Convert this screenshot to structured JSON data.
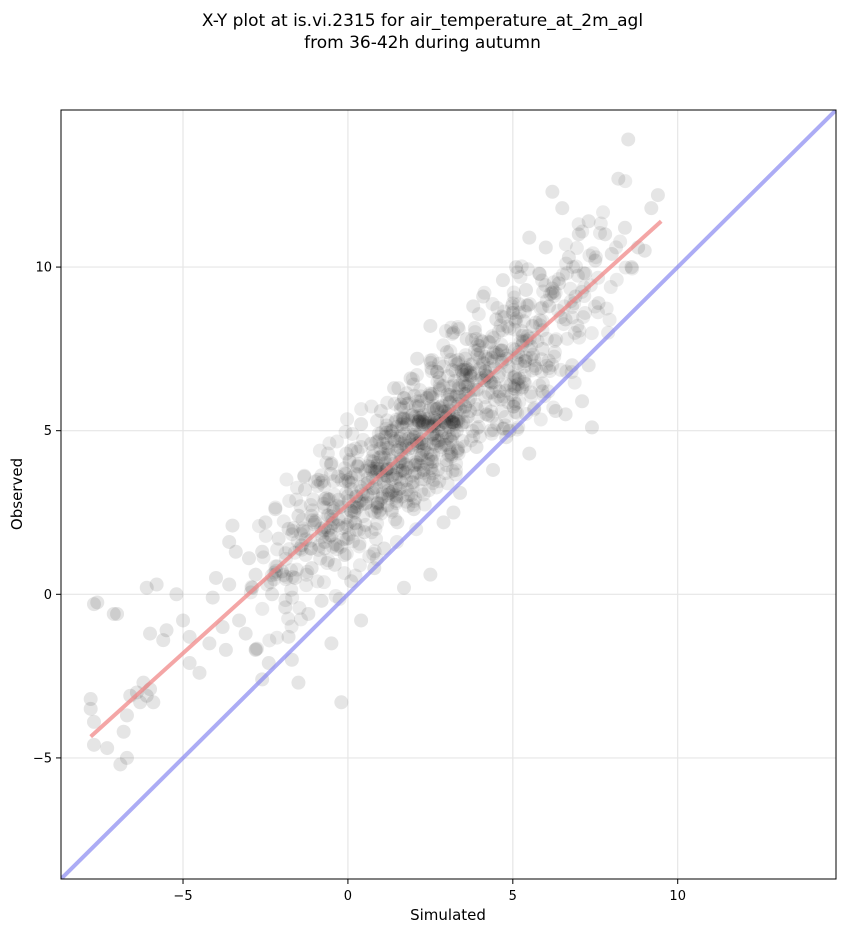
{
  "chart_data": {
    "type": "scatter",
    "title": "X-Y plot at is.vi.2315 for air_temperature_at_2m_agl",
    "subtitle": "from 36-42h during autumn",
    "xlabel": "Simulated",
    "ylabel": "Observed",
    "xlim": [
      -8.7,
      14.8
    ],
    "ylim": [
      -8.7,
      14.8
    ],
    "x_ticks": [
      -5,
      0,
      5,
      10
    ],
    "x_tick_labels": [
      "−5",
      "0",
      "5",
      "10"
    ],
    "y_ticks": [
      -5,
      0,
      5,
      10
    ],
    "y_tick_labels": [
      "−5",
      "0",
      "5",
      "10"
    ],
    "grid": true,
    "colors": {
      "points": "#000000",
      "regression": "#f08080",
      "identity": "#8080f0"
    },
    "regression_line": {
      "x": [
        -7.8,
        9.5
      ],
      "y": [
        -4.35,
        11.4
      ]
    },
    "identity_line": {
      "x": [
        -8.7,
        14.8
      ],
      "y": [
        -8.7,
        14.8
      ]
    },
    "points_sampled": [
      [
        -7.7,
        -0.3
      ],
      [
        -7.6,
        -0.25
      ],
      [
        -7.1,
        -0.6
      ],
      [
        -7.0,
        -0.6
      ],
      [
        -7.8,
        -3.2
      ],
      [
        -7.8,
        -3.5
      ],
      [
        -7.7,
        -3.9
      ],
      [
        -7.7,
        -4.6
      ],
      [
        -7.3,
        -4.7
      ],
      [
        -6.9,
        -5.2
      ],
      [
        -6.7,
        -5.0
      ],
      [
        -6.8,
        -4.2
      ],
      [
        -6.7,
        -3.7
      ],
      [
        -6.6,
        -3.1
      ],
      [
        -6.4,
        -3.0
      ],
      [
        -6.2,
        -2.7
      ],
      [
        -6.1,
        -3.1
      ],
      [
        -6.3,
        -3.3
      ],
      [
        -5.9,
        -3.3
      ],
      [
        -6.0,
        -2.9
      ],
      [
        -6.1,
        0.2
      ],
      [
        -5.8,
        0.3
      ],
      [
        -6.0,
        -1.2
      ],
      [
        -5.6,
        -1.4
      ],
      [
        -5.5,
        -1.1
      ],
      [
        -5.2,
        0.0
      ],
      [
        -5.0,
        -0.8
      ],
      [
        -4.8,
        -1.3
      ],
      [
        -4.8,
        -2.1
      ],
      [
        -4.5,
        -2.4
      ],
      [
        -4.2,
        -1.5
      ],
      [
        -4.1,
        -0.1
      ],
      [
        -4.0,
        0.5
      ],
      [
        -3.8,
        -1.0
      ],
      [
        -3.7,
        -1.7
      ],
      [
        -3.6,
        0.3
      ],
      [
        -3.6,
        1.6
      ],
      [
        -3.5,
        2.1
      ],
      [
        -3.4,
        1.3
      ],
      [
        -3.3,
        -0.8
      ],
      [
        -3.1,
        -1.2
      ],
      [
        -3.0,
        1.1
      ],
      [
        -2.9,
        0.2
      ],
      [
        -2.8,
        0.6
      ],
      [
        -2.8,
        -1.7
      ],
      [
        -2.6,
        -2.6
      ],
      [
        -2.6,
        1.3
      ],
      [
        -2.5,
        2.2
      ],
      [
        -2.4,
        -2.1
      ],
      [
        -2.3,
        0.0
      ],
      [
        -2.2,
        2.6
      ],
      [
        -2.1,
        1.7
      ],
      [
        -2.0,
        0.7
      ],
      [
        -1.9,
        -0.4
      ],
      [
        -1.8,
        -1.3
      ],
      [
        -1.8,
        2.0
      ],
      [
        -1.7,
        -2.0
      ],
      [
        -1.6,
        0.5
      ],
      [
        -1.5,
        2.4
      ],
      [
        -1.5,
        -2.7
      ],
      [
        -1.4,
        1.5
      ],
      [
        -1.3,
        3.2
      ],
      [
        -1.2,
        -0.6
      ],
      [
        -1.1,
        0.8
      ],
      [
        -1.0,
        2.2
      ],
      [
        -0.9,
        3.5
      ],
      [
        -0.8,
        -0.2
      ],
      [
        -0.7,
        1.6
      ],
      [
        -0.6,
        2.9
      ],
      [
        -0.5,
        4.0
      ],
      [
        -0.5,
        -1.5
      ],
      [
        -0.4,
        0.9
      ],
      [
        -0.3,
        2.1
      ],
      [
        -0.3,
        3.6
      ],
      [
        -0.2,
        -3.3
      ],
      [
        -0.1,
        1.2
      ],
      [
        0.0,
        3.0
      ],
      [
        0.1,
        4.4
      ],
      [
        0.1,
        0.4
      ],
      [
        0.2,
        2.5
      ],
      [
        0.3,
        3.9
      ],
      [
        0.4,
        5.2
      ],
      [
        0.4,
        -0.8
      ],
      [
        0.5,
        1.9
      ],
      [
        0.6,
        3.4
      ],
      [
        0.7,
        4.6
      ],
      [
        0.8,
        0.8
      ],
      [
        0.9,
        2.8
      ],
      [
        1.0,
        4.2
      ],
      [
        1.0,
        5.6
      ],
      [
        1.1,
        1.4
      ],
      [
        1.2,
        3.6
      ],
      [
        1.3,
        5.0
      ],
      [
        1.4,
        6.3
      ],
      [
        1.5,
        2.2
      ],
      [
        1.5,
        4.4
      ],
      [
        1.6,
        5.8
      ],
      [
        1.7,
        0.2
      ],
      [
        1.8,
        3.2
      ],
      [
        1.9,
        6.6
      ],
      [
        2.0,
        4.8
      ],
      [
        2.0,
        2.6
      ],
      [
        2.1,
        7.2
      ],
      [
        2.2,
        5.4
      ],
      [
        2.3,
        3.8
      ],
      [
        2.4,
        6.0
      ],
      [
        2.5,
        8.2
      ],
      [
        2.5,
        0.6
      ],
      [
        2.6,
        4.6
      ],
      [
        2.7,
        6.8
      ],
      [
        2.8,
        5.2
      ],
      [
        2.9,
        2.2
      ],
      [
        3.0,
        7.4
      ],
      [
        3.0,
        4.1
      ],
      [
        3.1,
        6.1
      ],
      [
        3.2,
        8.0
      ],
      [
        3.3,
        5.0
      ],
      [
        3.4,
        3.1
      ],
      [
        3.5,
        6.7
      ],
      [
        3.6,
        7.8
      ],
      [
        3.7,
        5.6
      ],
      [
        3.8,
        8.8
      ],
      [
        3.9,
        4.5
      ],
      [
        4.0,
        6.9
      ],
      [
        4.1,
        9.1
      ],
      [
        4.2,
        5.5
      ],
      [
        4.3,
        7.7
      ],
      [
        4.4,
        3.8
      ],
      [
        4.5,
        8.4
      ],
      [
        4.6,
        6.2
      ],
      [
        4.7,
        9.6
      ],
      [
        4.8,
        7.2
      ],
      [
        4.9,
        5.0
      ],
      [
        5.0,
        8.6
      ],
      [
        5.1,
        10.0
      ],
      [
        5.2,
        6.6
      ],
      [
        5.3,
        7.9
      ],
      [
        5.4,
        9.3
      ],
      [
        5.5,
        4.3
      ],
      [
        5.5,
        10.9
      ],
      [
        5.6,
        8.2
      ],
      [
        5.7,
        6.9
      ],
      [
        5.8,
        9.8
      ],
      [
        5.9,
        7.5
      ],
      [
        6.0,
        10.6
      ],
      [
        6.1,
        8.8
      ],
      [
        6.2,
        12.3
      ],
      [
        6.3,
        5.6
      ],
      [
        6.4,
        9.5
      ],
      [
        6.5,
        11.8
      ],
      [
        6.6,
        8.4
      ],
      [
        6.7,
        10.3
      ],
      [
        6.8,
        7.0
      ],
      [
        6.9,
        9.1
      ],
      [
        7.0,
        11.0
      ],
      [
        7.1,
        5.9
      ],
      [
        7.2,
        9.8
      ],
      [
        7.3,
        11.4
      ],
      [
        7.4,
        5.1
      ],
      [
        7.5,
        10.2
      ],
      [
        7.6,
        8.9
      ],
      [
        7.8,
        11.0
      ],
      [
        8.0,
        10.4
      ],
      [
        8.2,
        12.7
      ],
      [
        8.4,
        11.2
      ],
      [
        8.5,
        13.9
      ],
      [
        8.6,
        10.0
      ],
      [
        8.8,
        10.6
      ],
      [
        9.0,
        10.5
      ],
      [
        9.2,
        11.8
      ],
      [
        9.4,
        12.2
      ],
      [
        6.6,
        5.5
      ],
      [
        5.9,
        6.2
      ],
      [
        7.3,
        7.0
      ],
      [
        4.8,
        4.8
      ],
      [
        3.2,
        2.5
      ]
    ]
  }
}
